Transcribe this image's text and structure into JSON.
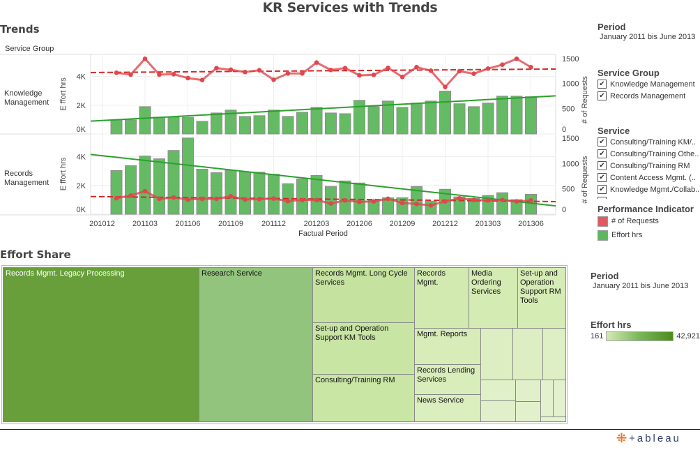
{
  "title": "KR Services with Trends",
  "trends": {
    "heading": "Trends",
    "row_header": "Service Group",
    "x_axis_title": "Factual Period",
    "left_axis_title": "E ffort hrs",
    "right_axis_title": "# of Requests",
    "left_ticks": [
      "0K",
      "2K",
      "4K"
    ],
    "right_ticks": [
      "0",
      "500",
      "1000",
      "1500"
    ],
    "x_tick_labels": [
      "201012",
      "201103",
      "201106",
      "201109",
      "201112",
      "201203",
      "201206",
      "201209",
      "201212",
      "201303",
      "201306"
    ]
  },
  "chart_data": {
    "type": "bar",
    "title": "Trends",
    "xlabel": "Factual Period",
    "ylabel": "Effort hrs",
    "y2label": "# of Requests",
    "x": [
      "201101",
      "201102",
      "201103",
      "201104",
      "201105",
      "201106",
      "201107",
      "201108",
      "201109",
      "201110",
      "201111",
      "201112",
      "201201",
      "201202",
      "201203",
      "201204",
      "201205",
      "201206",
      "201207",
      "201208",
      "201209",
      "201210",
      "201211",
      "201212",
      "201301",
      "201302",
      "201303",
      "201304",
      "201305",
      "201306"
    ],
    "ylim": [
      0,
      5500
    ],
    "y2lim": [
      0,
      1500
    ],
    "panels": [
      {
        "name": "Knowledge Management",
        "effort_hrs": [
          975,
          975,
          1900,
          1170,
          1170,
          1150,
          880,
          1460,
          1660,
          1220,
          1270,
          1660,
          1220,
          1510,
          1850,
          1460,
          1410,
          2340,
          1900,
          2290,
          1850,
          2150,
          2290,
          2980,
          2100,
          1900,
          2150,
          2630,
          2630,
          2590
        ],
        "requests": [
          1207,
          1170,
          1482,
          1170,
          1179,
          1101,
          1064,
          1298,
          1266,
          1220,
          1256,
          1069,
          1193,
          1193,
          1408,
          1262,
          1298,
          1156,
          1165,
          1303,
          1124,
          1317,
          1248,
          926,
          1238,
          1187,
          1289,
          1366,
          1482,
          1317
        ],
        "effort_trend": {
          "start": 890,
          "end": 2650
        },
        "requests_trend": {
          "start": 1211,
          "end": 1280
        }
      },
      {
        "name": "Records Management",
        "effort_hrs": [
          3036,
          3373,
          4048,
          3855,
          4434,
          5301,
          3133,
          2892,
          3051,
          2940,
          2924,
          2780,
          2120,
          2458,
          2699,
          1928,
          2313,
          2169,
          980,
          1142,
          1142,
          1928,
          901,
          1735,
          1205,
          1094,
          1301,
          1494,
          1012,
          1383
        ],
        "requests": [
          316,
          367,
          454,
          303,
          330,
          289,
          303,
          303,
          353,
          289,
          298,
          307,
          257,
          280,
          280,
          211,
          271,
          243,
          252,
          303,
          220,
          202,
          174,
          252,
          312,
          280,
          271,
          280,
          252,
          271
        ],
        "effort_trend": {
          "start": 4159,
          "end": 578
        },
        "requests_trend": {
          "start": 348,
          "end": 248
        }
      }
    ],
    "legend": [
      {
        "label": "# of Requests",
        "color": "#e0474c"
      },
      {
        "label": "Effort hrs",
        "color": "#5cb85c"
      }
    ],
    "legend_position": "right"
  },
  "filters": {
    "period": {
      "title": "Period",
      "value": "January 2011 bis June 2013"
    },
    "service_group": {
      "title": "Service Group",
      "items": [
        "Knowledge Management",
        "Records Management"
      ]
    },
    "service": {
      "title": "Service",
      "items": [
        "Consulting/Training KM/..",
        "Consulting/Training Othe..",
        "Consulting/Training RM",
        "Content Access Mgmt. (..",
        "Knowledge Mgmt./Collab.."
      ]
    },
    "performance": {
      "title": "Performance Indicator",
      "items": [
        {
          "label": "# of Requests",
          "color": "#e05a5e"
        },
        {
          "label": "Effort hrs",
          "color": "#5cb85c"
        }
      ]
    }
  },
  "effort_share": {
    "heading": "Effort Share",
    "labels": {
      "legacy": "Records Mgmt. Legacy Processing",
      "research": "Research Service",
      "long_cycle": "Records Mgmt. Long Cycle Services",
      "setup_km": "Set-up and Operation Support KM Tools",
      "consulting_rm": "Consulting/Training RM",
      "records_mgmt": "Records Mgmt.",
      "media": "Media Ordering Services",
      "setup_rm": "Set-up and Operation Support RM Tools",
      "mgmt_reports": "Mgmt. Reports",
      "lending": "Records Lending Services",
      "news": "News Service"
    },
    "period": {
      "title": "Period",
      "value": "January 2011 bis June 2013"
    },
    "color_legend": {
      "title": "Effort hrs",
      "min": "161",
      "max": "42,921",
      "min_color": "#d4ebb4",
      "max_color": "#4a8c1c"
    }
  },
  "footer": {
    "logo": "+ableau"
  }
}
